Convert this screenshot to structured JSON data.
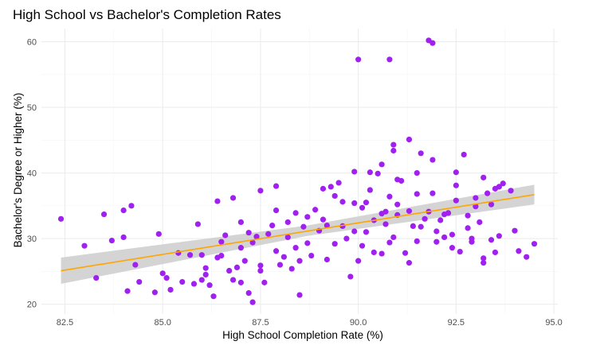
{
  "chart_data": {
    "type": "scatter",
    "title": "High School vs Bachelor's Completion Rates",
    "xlabel": "High School Completion Rate (%)",
    "ylabel": "Bachelor's Degree or Higher (%)",
    "xlim": [
      81.9,
      95.1
    ],
    "ylim": [
      18.5,
      62.0
    ],
    "x_ticks": [
      82.5,
      85.0,
      87.5,
      90.0,
      92.5,
      95.0
    ],
    "x_tick_labels": [
      "82.5",
      "85.0",
      "87.5",
      "90.0",
      "92.5",
      "95.0"
    ],
    "y_ticks": [
      20,
      30,
      40,
      50,
      60
    ],
    "y_tick_labels": [
      "20",
      "30",
      "40",
      "50",
      "60"
    ],
    "grid": true,
    "point_color": "#A020F0",
    "trend_color": "#FFA500",
    "band_color": "#CCCCCC",
    "trend": {
      "x": [
        82.4,
        94.5
      ],
      "y": [
        25.1,
        36.7
      ]
    },
    "band": {
      "x": [
        82.4,
        88.7,
        94.5
      ],
      "lower": [
        23.1,
        30.4,
        35.2
      ],
      "upper": [
        27.1,
        32.0,
        38.2
      ]
    },
    "points": [
      [
        82.4,
        33.0
      ],
      [
        83.0,
        28.9
      ],
      [
        83.3,
        24.0
      ],
      [
        83.5,
        33.7
      ],
      [
        83.7,
        29.7
      ],
      [
        84.0,
        34.3
      ],
      [
        84.0,
        30.2
      ],
      [
        84.1,
        22.0
      ],
      [
        84.2,
        35.0
      ],
      [
        84.3,
        26.0
      ],
      [
        84.4,
        23.4
      ],
      [
        84.8,
        21.8
      ],
      [
        84.9,
        30.7
      ],
      [
        85.0,
        24.7
      ],
      [
        85.1,
        24.0
      ],
      [
        85.2,
        22.2
      ],
      [
        85.4,
        27.8
      ],
      [
        85.5,
        23.4
      ],
      [
        85.7,
        27.5
      ],
      [
        85.8,
        23.1
      ],
      [
        86.0,
        27.5
      ],
      [
        86.0,
        23.7
      ],
      [
        86.1,
        25.5
      ],
      [
        86.1,
        24.5
      ],
      [
        86.2,
        22.9
      ],
      [
        86.3,
        21.2
      ],
      [
        86.4,
        35.7
      ],
      [
        86.5,
        29.5
      ],
      [
        86.5,
        27.4
      ],
      [
        86.6,
        30.5
      ],
      [
        86.7,
        25.1
      ],
      [
        86.8,
        36.2
      ],
      [
        86.8,
        23.7
      ],
      [
        86.9,
        25.6
      ],
      [
        87.0,
        28.6
      ],
      [
        87.0,
        23.3
      ],
      [
        87.1,
        26.6
      ],
      [
        87.2,
        30.9
      ],
      [
        87.2,
        21.7
      ],
      [
        87.3,
        20.3
      ],
      [
        87.3,
        29.4
      ],
      [
        87.4,
        30.3
      ],
      [
        87.5,
        25.1
      ],
      [
        87.5,
        37.3
      ],
      [
        87.5,
        25.9
      ],
      [
        87.6,
        23.3
      ],
      [
        87.7,
        30.7
      ],
      [
        87.8,
        32.0
      ],
      [
        87.9,
        38.0
      ],
      [
        87.9,
        28.1
      ],
      [
        88.0,
        26.0
      ],
      [
        88.1,
        27.2
      ],
      [
        88.2,
        32.5
      ],
      [
        88.2,
        30.2
      ],
      [
        88.3,
        25.4
      ],
      [
        88.4,
        33.9
      ],
      [
        88.5,
        21.4
      ],
      [
        88.5,
        26.6
      ],
      [
        88.6,
        31.8
      ],
      [
        88.7,
        29.3
      ],
      [
        88.7,
        33.3
      ],
      [
        88.8,
        27.4
      ],
      [
        88.9,
        34.4
      ],
      [
        89.0,
        31.2
      ],
      [
        89.1,
        37.6
      ],
      [
        89.2,
        32.0
      ],
      [
        89.3,
        37.9
      ],
      [
        89.4,
        29.2
      ],
      [
        89.5,
        38.5
      ],
      [
        89.6,
        35.6
      ],
      [
        89.7,
        30.0
      ],
      [
        89.8,
        24.2
      ],
      [
        89.9,
        31.1
      ],
      [
        90.0,
        26.6
      ],
      [
        90.1,
        28.9
      ],
      [
        90.2,
        35.5
      ],
      [
        90.3,
        40.1
      ],
      [
        90.4,
        32.8
      ],
      [
        90.5,
        39.9
      ],
      [
        90.6,
        27.7
      ],
      [
        90.7,
        34.1
      ],
      [
        90.8,
        29.4
      ],
      [
        90.9,
        30.2
      ],
      [
        91.0,
        33.6
      ],
      [
        91.1,
        38.8
      ],
      [
        91.2,
        27.8
      ],
      [
        91.3,
        34.2
      ],
      [
        91.4,
        31.9
      ],
      [
        91.5,
        40.0
      ],
      [
        91.6,
        43.0
      ],
      [
        91.7,
        33.0
      ],
      [
        91.8,
        34.1
      ],
      [
        91.9,
        36.9
      ],
      [
        92.0,
        29.5
      ],
      [
        92.1,
        32.8
      ],
      [
        92.2,
        30.2
      ],
      [
        92.3,
        33.9
      ],
      [
        92.4,
        28.6
      ],
      [
        92.5,
        40.1
      ],
      [
        92.6,
        28.0
      ],
      [
        92.7,
        42.8
      ],
      [
        92.8,
        33.5
      ],
      [
        92.9,
        29.5
      ],
      [
        93.0,
        36.2
      ],
      [
        93.1,
        32.5
      ],
      [
        93.2,
        27.0
      ],
      [
        93.3,
        36.9
      ],
      [
        93.4,
        35.2
      ],
      [
        93.5,
        37.6
      ],
      [
        93.6,
        30.4
      ],
      [
        93.7,
        38.4
      ],
      [
        93.9,
        37.3
      ],
      [
        94.0,
        31.2
      ],
      [
        94.1,
        28.1
      ],
      [
        94.3,
        27.2
      ],
      [
        94.5,
        29.2
      ],
      [
        90.0,
        57.3
      ],
      [
        90.8,
        57.3
      ],
      [
        91.8,
        60.2
      ],
      [
        91.9,
        59.8
      ],
      [
        91.3,
        45.1
      ],
      [
        90.9,
        44.3
      ],
      [
        90.9,
        43.4
      ],
      [
        89.9,
        40.2
      ],
      [
        90.6,
        41.3
      ],
      [
        91.9,
        42.0
      ],
      [
        89.4,
        36.5
      ],
      [
        90.3,
        37.4
      ],
      [
        90.8,
        36.4
      ],
      [
        91.0,
        39.0
      ],
      [
        91.5,
        36.8
      ],
      [
        90.1,
        34.7
      ],
      [
        92.2,
        33.7
      ],
      [
        92.5,
        35.8
      ],
      [
        93.2,
        39.3
      ],
      [
        93.4,
        29.8
      ],
      [
        93.2,
        26.3
      ],
      [
        91.6,
        31.8
      ],
      [
        91.5,
        29.6
      ],
      [
        92.0,
        31.1
      ],
      [
        90.6,
        33.8
      ],
      [
        89.6,
        31.9
      ],
      [
        89.2,
        26.8
      ],
      [
        90.4,
        27.9
      ],
      [
        91.3,
        26.3
      ],
      [
        92.8,
        31.6
      ],
      [
        93.0,
        34.9
      ],
      [
        92.5,
        38.1
      ],
      [
        93.6,
        37.9
      ],
      [
        89.9,
        35.4
      ],
      [
        90.7,
        32.2
      ],
      [
        88.4,
        28.6
      ],
      [
        87.9,
        34.3
      ],
      [
        86.4,
        27.1
      ],
      [
        85.9,
        32.2
      ],
      [
        87.0,
        32.5
      ],
      [
        92.4,
        30.6
      ],
      [
        91.0,
        35.2
      ],
      [
        89.1,
        32.9
      ],
      [
        90.2,
        31.0
      ],
      [
        92.9,
        30.0
      ],
      [
        93.5,
        27.9
      ]
    ]
  }
}
